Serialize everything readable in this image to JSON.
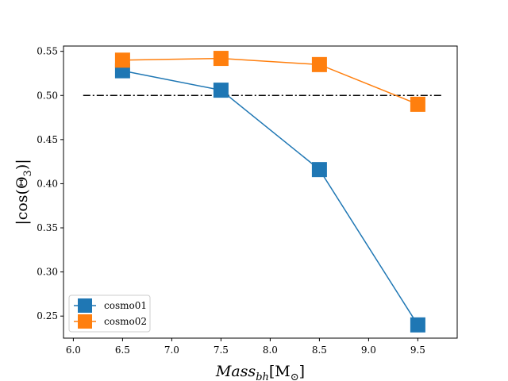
{
  "chart_data": {
    "type": "line",
    "x": [
      6.5,
      7.5,
      8.5,
      9.5
    ],
    "series": [
      {
        "name": "cosmo01",
        "values": [
          0.528,
          0.506,
          0.416,
          0.24
        ],
        "color": "#1f77b4",
        "marker": "square"
      },
      {
        "name": "cosmo02",
        "values": [
          0.54,
          0.542,
          0.535,
          0.49
        ],
        "color": "#ff7f0e",
        "marker": "square"
      }
    ],
    "reference_line": {
      "y": 0.5,
      "x_range": [
        6.1,
        9.75
      ],
      "style": "dash-dot",
      "color": "#000000"
    },
    "xlim": [
      5.9,
      9.9
    ],
    "ylim": [
      0.225,
      0.556
    ],
    "xticks": [
      6.0,
      6.5,
      7.0,
      7.5,
      8.0,
      8.5,
      9.0,
      9.5
    ],
    "xtick_labels": [
      "6.0",
      "6.5",
      "7.0",
      "7.5",
      "8.0",
      "8.5",
      "9.0",
      "9.5"
    ],
    "yticks": [
      0.25,
      0.3,
      0.35,
      0.4,
      0.45,
      0.5,
      0.55
    ],
    "ytick_labels": [
      "0.25",
      "0.30",
      "0.35",
      "0.40",
      "0.45",
      "0.50",
      "0.55"
    ],
    "xlabel": {
      "main": "Mass",
      "sub": "bh",
      "rest": "[M",
      "rest_sub": "⊙",
      "close": "]"
    },
    "ylabel": "|cos(Θ",
    "ylabel_sub": "3",
    "ylabel_close": ")|",
    "legend_loc": "lower-left",
    "grid": false,
    "title": ""
  }
}
